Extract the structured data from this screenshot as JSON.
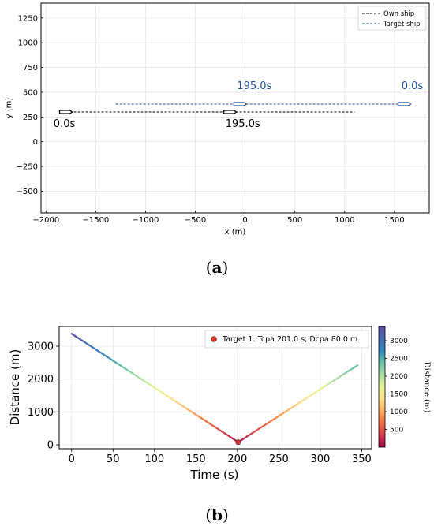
{
  "charts": {
    "a": {
      "caption_open": "(",
      "caption_letter": "a",
      "caption_close": ")",
      "legend": [
        "Own ship",
        "Target ship"
      ]
    },
    "b": {
      "caption_open": "(",
      "caption_letter": "b",
      "caption_close": ")",
      "legend": [
        "Target 1: Tcpa 201.0 s; Dcpa 80.0 m"
      ]
    }
  },
  "chart_data": [
    {
      "type": "line",
      "title": "",
      "xlabel": "x (m)",
      "ylabel": "y (m)",
      "xlim": [
        -2050,
        1850
      ],
      "ylim": [
        -720,
        1400
      ],
      "xticks": [
        -2000,
        -1500,
        -1000,
        -500,
        0,
        500,
        1000,
        1500
      ],
      "yticks": [
        -500,
        -250,
        0,
        250,
        500,
        750,
        1000,
        1250
      ],
      "grid": true,
      "legend_position": "top-right",
      "series": [
        {
          "name": "Own ship",
          "color": "#000000",
          "style": "dashed",
          "x": [
            -1800,
            1100
          ],
          "y": [
            300,
            300
          ],
          "ship_markers": [
            {
              "x": -1800,
              "y": 300,
              "label": "0.0s"
            },
            {
              "x": -150,
              "y": 300,
              "label": "195.0s"
            }
          ]
        },
        {
          "name": "Target ship",
          "color": "#1f4e9c",
          "style": "dashed",
          "x": [
            -1300,
            1650
          ],
          "y": [
            380,
            380
          ],
          "ship_markers": [
            {
              "x": 1600,
              "y": 380,
              "label": "0.0s"
            },
            {
              "x": -50,
              "y": 380,
              "label": "195.0s"
            }
          ]
        }
      ]
    },
    {
      "type": "line",
      "title": "",
      "xlabel": "Time (s)",
      "ylabel": "Distance (m)",
      "xlim": [
        -15,
        362
      ],
      "ylim": [
        -120,
        3600
      ],
      "xticks": [
        0,
        50,
        100,
        150,
        200,
        250,
        300,
        350
      ],
      "yticks": [
        0,
        1000,
        2000,
        3000
      ],
      "grid": true,
      "legend_position": "top-right",
      "colormap": "Spectral",
      "colorbar_label": "Distance (m)",
      "colorbar_range": [
        0,
        3400
      ],
      "colorbar_ticks": [
        500,
        1000,
        1500,
        2000,
        2500,
        3000
      ],
      "series": [
        {
          "name": "Distance",
          "x": [
            0,
            201,
            345
          ],
          "y": [
            3380,
            80,
            2420
          ]
        }
      ],
      "markers": [
        {
          "label": "Target 1: Tcpa 201.0 s; Dcpa 80.0 m",
          "x": 201,
          "y": 80,
          "color": "#d9352b"
        }
      ]
    }
  ]
}
